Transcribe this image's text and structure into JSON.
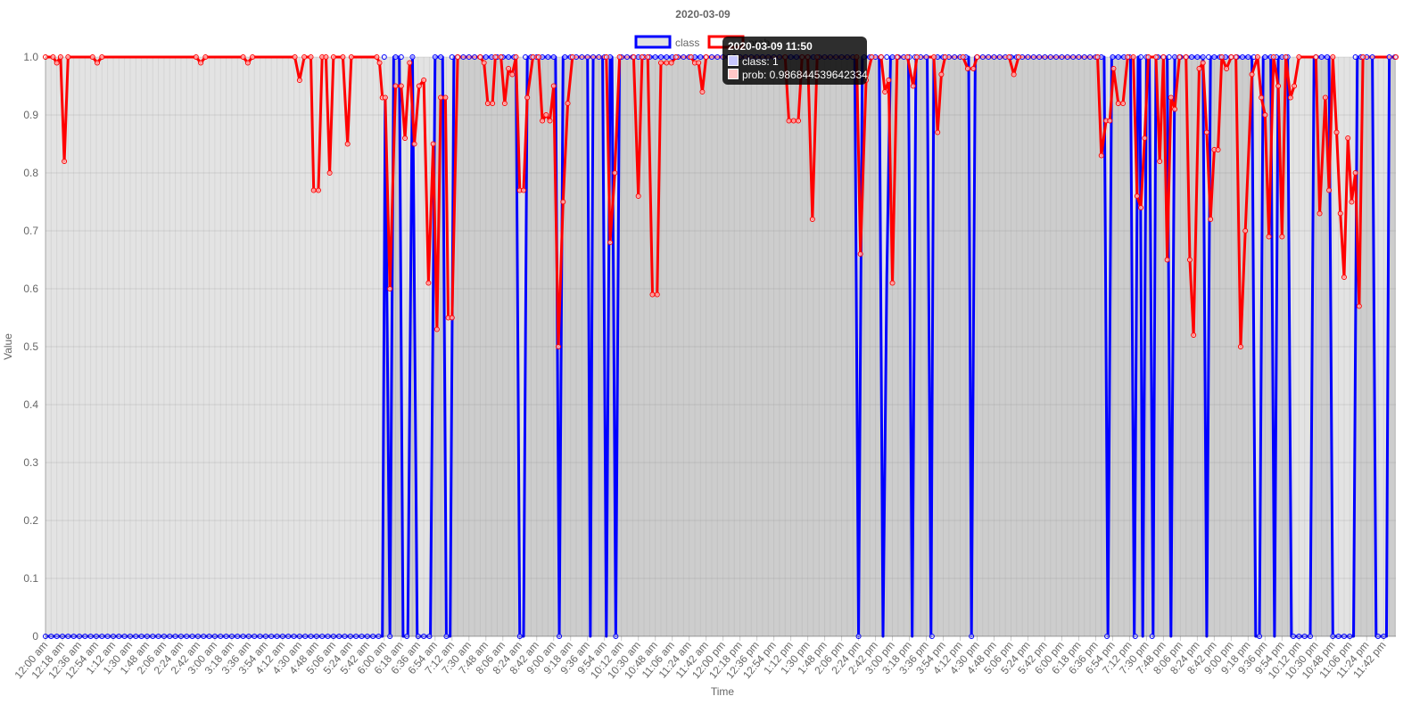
{
  "chart_data": {
    "type": "line",
    "title": "2020-03-09",
    "xlabel": "Time",
    "ylabel": "Value",
    "ylim": [
      0,
      1
    ],
    "yticks": [
      "0",
      "0.1",
      "0.2",
      "0.3",
      "0.4",
      "0.5",
      "0.6",
      "0.7",
      "0.8",
      "0.9",
      "1.0"
    ],
    "grid": true,
    "legend_position": "top",
    "xticks": [
      "12:00 am",
      "12:18 am",
      "12:36 am",
      "12:54 am",
      "1:12 am",
      "1:30 am",
      "1:48 am",
      "2:06 am",
      "2:24 am",
      "2:42 am",
      "3:00 am",
      "3:18 am",
      "3:36 am",
      "3:54 am",
      "4:12 am",
      "4:30 am",
      "4:48 am",
      "5:06 am",
      "5:24 am",
      "5:42 am",
      "6:00 am",
      "6:18 am",
      "6:36 am",
      "6:54 am",
      "7:12 am",
      "7:30 am",
      "7:48 am",
      "8:06 am",
      "8:24 am",
      "8:42 am",
      "9:00 am",
      "9:18 am",
      "9:36 am",
      "9:54 am",
      "10:12 am",
      "10:30 am",
      "10:48 am",
      "11:06 am",
      "11:24 am",
      "11:42 am",
      "12:00 pm",
      "12:18 pm",
      "12:36 pm",
      "12:54 pm",
      "1:12 pm",
      "1:30 pm",
      "1:48 pm",
      "2:06 pm",
      "2:24 pm",
      "2:42 pm",
      "3:00 pm",
      "3:18 pm",
      "3:36 pm",
      "3:54 pm",
      "4:12 pm",
      "4:30 pm",
      "4:48 pm",
      "5:06 pm",
      "5:24 pm",
      "5:42 pm",
      "6:00 pm",
      "6:18 pm",
      "6:36 pm",
      "6:54 pm",
      "7:12 pm",
      "7:30 pm",
      "7:48 pm",
      "8:06 pm",
      "8:24 pm",
      "8:42 pm",
      "9:00 pm",
      "9:18 pm",
      "9:36 pm",
      "9:54 pm",
      "10:12 pm",
      "10:30 pm",
      "10:48 pm",
      "11:06 pm",
      "11:24 pm",
      "11:42 pm"
    ],
    "x_range_minutes": [
      0,
      1435
    ],
    "series": [
      {
        "name": "class",
        "color": "#0000ff",
        "fill": "rgba(128,128,128,0.22)",
        "points": [
          [
            0,
            0
          ],
          [
            358,
            0
          ],
          [
            361,
            0.93
          ],
          [
            366,
            0
          ],
          [
            370,
            1
          ],
          [
            376,
            1
          ],
          [
            380,
            0
          ],
          [
            385,
            0
          ],
          [
            390,
            1
          ],
          [
            395,
            0
          ],
          [
            409,
            0
          ],
          [
            414,
            1
          ],
          [
            422,
            1
          ],
          [
            426,
            0
          ],
          [
            430,
            0
          ],
          [
            434,
            1
          ],
          [
            500,
            1
          ],
          [
            504,
            0
          ],
          [
            508,
            0
          ],
          [
            512,
            1
          ],
          [
            542,
            1
          ],
          [
            546,
            0
          ],
          [
            550,
            1
          ],
          [
            576,
            1
          ],
          [
            579,
            0
          ],
          [
            582,
            1
          ],
          [
            592,
            1
          ],
          [
            596,
            0
          ],
          [
            600,
            1
          ],
          [
            602,
            1
          ],
          [
            606,
            0
          ],
          [
            610,
            1
          ],
          [
            860,
            1
          ],
          [
            864,
            0
          ],
          [
            868,
            1
          ],
          [
            886,
            1
          ],
          [
            890,
            0
          ],
          [
            894,
            0.62
          ],
          [
            898,
            1
          ],
          [
            917,
            1
          ],
          [
            921,
            0
          ],
          [
            925,
            1
          ],
          [
            937,
            1
          ],
          [
            941,
            0
          ],
          [
            944,
            1
          ],
          [
            981,
            1
          ],
          [
            984,
            0
          ],
          [
            988,
            1
          ],
          [
            1125,
            1
          ],
          [
            1129,
            0
          ],
          [
            1133,
            1
          ],
          [
            1153,
            1
          ],
          [
            1157,
            0
          ],
          [
            1161,
            1
          ],
          [
            1163,
            1
          ],
          [
            1166,
            0
          ],
          [
            1170,
            1
          ],
          [
            1173,
            1
          ],
          [
            1177,
            0
          ],
          [
            1180,
            1
          ],
          [
            1192,
            1
          ],
          [
            1196,
            0
          ],
          [
            1200,
            1
          ],
          [
            1230,
            1
          ],
          [
            1234,
            0
          ],
          [
            1238,
            1
          ],
          [
            1282,
            1
          ],
          [
            1286,
            0
          ],
          [
            1290,
            0
          ],
          [
            1294,
            1
          ],
          [
            1302,
            1
          ],
          [
            1306,
            0
          ],
          [
            1310,
            1
          ],
          [
            1320,
            1
          ],
          [
            1324,
            0
          ],
          [
            1344,
            0
          ],
          [
            1348,
            1
          ],
          [
            1364,
            1
          ],
          [
            1368,
            0
          ],
          [
            1390,
            0
          ],
          [
            1394,
            1
          ],
          [
            1410,
            1
          ],
          [
            1414,
            0
          ],
          [
            1425,
            0
          ],
          [
            1428,
            1
          ],
          [
            1435,
            1
          ]
        ]
      },
      {
        "name": "prob",
        "color": "#ff0000",
        "points": [
          [
            0,
            1
          ],
          [
            8,
            1
          ],
          [
            12,
            0.99
          ],
          [
            16,
            1
          ],
          [
            20,
            0.82
          ],
          [
            24,
            1
          ],
          [
            50,
            1
          ],
          [
            55,
            0.99
          ],
          [
            60,
            1
          ],
          [
            160,
            1
          ],
          [
            165,
            0.99
          ],
          [
            170,
            1
          ],
          [
            210,
            1
          ],
          [
            215,
            0.99
          ],
          [
            220,
            1
          ],
          [
            265,
            1
          ],
          [
            270,
            0.96
          ],
          [
            275,
            1
          ],
          [
            282,
            1
          ],
          [
            285,
            0.77
          ],
          [
            290,
            0.77
          ],
          [
            294,
            1
          ],
          [
            298,
            1
          ],
          [
            302,
            0.8
          ],
          [
            306,
            1
          ],
          [
            316,
            1
          ],
          [
            321,
            0.85
          ],
          [
            325,
            1
          ],
          [
            352,
            1
          ],
          [
            355,
            0.99
          ],
          [
            358,
            0.93
          ],
          [
            361,
            0.93
          ],
          [
            366,
            0.6
          ],
          [
            372,
            0.95
          ],
          [
            378,
            0.95
          ],
          [
            382,
            0.86
          ],
          [
            387,
            0.99
          ],
          [
            392,
            0.85
          ],
          [
            397,
            0.95
          ],
          [
            402,
            0.96
          ],
          [
            407,
            0.61
          ],
          [
            412,
            0.85
          ],
          [
            416,
            0.53
          ],
          [
            420,
            0.93
          ],
          [
            425,
            0.93
          ],
          [
            428,
            0.55
          ],
          [
            432,
            0.55
          ],
          [
            438,
            1
          ],
          [
            462,
            1
          ],
          [
            466,
            0.99
          ],
          [
            470,
            0.92
          ],
          [
            475,
            0.92
          ],
          [
            478,
            1
          ],
          [
            484,
            1
          ],
          [
            488,
            0.92
          ],
          [
            492,
            0.98
          ],
          [
            496,
            0.97
          ],
          [
            500,
            1
          ],
          [
            504,
            0.77
          ],
          [
            508,
            0.77
          ],
          [
            512,
            0.93
          ],
          [
            518,
            1
          ],
          [
            524,
            1
          ],
          [
            528,
            0.89
          ],
          [
            532,
            0.9
          ],
          [
            536,
            0.89
          ],
          [
            540,
            0.95
          ],
          [
            545,
            0.5
          ],
          [
            550,
            0.75
          ],
          [
            555,
            0.92
          ],
          [
            560,
            1
          ],
          [
            596,
            1
          ],
          [
            600,
            0.68
          ],
          [
            605,
            0.8
          ],
          [
            610,
            1
          ],
          [
            625,
            1
          ],
          [
            630,
            0.76
          ],
          [
            634,
            1
          ],
          [
            640,
            1
          ],
          [
            645,
            0.59
          ],
          [
            650,
            0.59
          ],
          [
            654,
            0.99
          ],
          [
            660,
            0.99
          ],
          [
            665,
            0.99
          ],
          [
            670,
            1
          ],
          [
            686,
            1
          ],
          [
            690,
            0.99
          ],
          [
            694,
            0.99
          ],
          [
            698,
            0.94
          ],
          [
            702,
            1
          ],
          [
            786,
            1
          ],
          [
            790,
            0.89
          ],
          [
            795,
            0.89
          ],
          [
            800,
            0.89
          ],
          [
            804,
            1
          ],
          [
            810,
            1
          ],
          [
            815,
            0.72
          ],
          [
            820,
            1
          ],
          [
            862,
            1
          ],
          [
            866,
            0.66
          ],
          [
            872,
            0.96
          ],
          [
            878,
            1
          ],
          [
            888,
            1
          ],
          [
            892,
            0.94
          ],
          [
            896,
            0.96
          ],
          [
            900,
            0.61
          ],
          [
            905,
            1
          ],
          [
            916,
            1
          ],
          [
            922,
            0.95
          ],
          [
            926,
            1
          ],
          [
            944,
            1
          ],
          [
            948,
            0.87
          ],
          [
            952,
            0.97
          ],
          [
            956,
            1
          ],
          [
            975,
            1
          ],
          [
            980,
            0.98
          ],
          [
            986,
            0.98
          ],
          [
            990,
            1
          ],
          [
            1024,
            1
          ],
          [
            1029,
            0.97
          ],
          [
            1034,
            1
          ],
          [
            1118,
            1
          ],
          [
            1122,
            0.83
          ],
          [
            1127,
            0.89
          ],
          [
            1131,
            0.89
          ],
          [
            1135,
            0.98
          ],
          [
            1140,
            0.92
          ],
          [
            1145,
            0.92
          ],
          [
            1150,
            1
          ],
          [
            1156,
            1
          ],
          [
            1160,
            0.76
          ],
          [
            1164,
            0.74
          ],
          [
            1168,
            0.86
          ],
          [
            1172,
            1
          ],
          [
            1180,
            1
          ],
          [
            1184,
            0.82
          ],
          [
            1188,
            1
          ],
          [
            1192,
            0.65
          ],
          [
            1196,
            0.93
          ],
          [
            1200,
            0.91
          ],
          [
            1205,
            1
          ],
          [
            1212,
            1
          ],
          [
            1216,
            0.65
          ],
          [
            1220,
            0.52
          ],
          [
            1226,
            0.98
          ],
          [
            1230,
            0.99
          ],
          [
            1234,
            0.87
          ],
          [
            1238,
            0.72
          ],
          [
            1242,
            0.84
          ],
          [
            1246,
            0.84
          ],
          [
            1250,
            1
          ],
          [
            1255,
            0.98
          ],
          [
            1260,
            1
          ],
          [
            1265,
            1
          ],
          [
            1270,
            0.5
          ],
          [
            1275,
            0.7
          ],
          [
            1282,
            0.97
          ],
          [
            1288,
            1
          ],
          [
            1292,
            0.93
          ],
          [
            1296,
            0.9
          ],
          [
            1300,
            0.69
          ],
          [
            1305,
            1
          ],
          [
            1310,
            0.95
          ],
          [
            1314,
            0.69
          ],
          [
            1318,
            1
          ],
          [
            1323,
            0.93
          ],
          [
            1327,
            0.95
          ],
          [
            1332,
            1
          ],
          [
            1350,
            1
          ],
          [
            1354,
            0.73
          ],
          [
            1360,
            0.93
          ],
          [
            1364,
            0.77
          ],
          [
            1368,
            1
          ],
          [
            1372,
            0.87
          ],
          [
            1376,
            0.73
          ],
          [
            1380,
            0.62
          ],
          [
            1384,
            0.86
          ],
          [
            1388,
            0.75
          ],
          [
            1392,
            0.8
          ],
          [
            1396,
            0.57
          ],
          [
            1400,
            1
          ],
          [
            1435,
            1
          ]
        ]
      }
    ]
  },
  "tooltip": {
    "title": "2020-03-09 11:50",
    "rows": [
      {
        "label": "class: 1",
        "color": "#0000ff"
      },
      {
        "label": "prob: 0.986844539642334",
        "color": "#ff0000"
      }
    ]
  }
}
